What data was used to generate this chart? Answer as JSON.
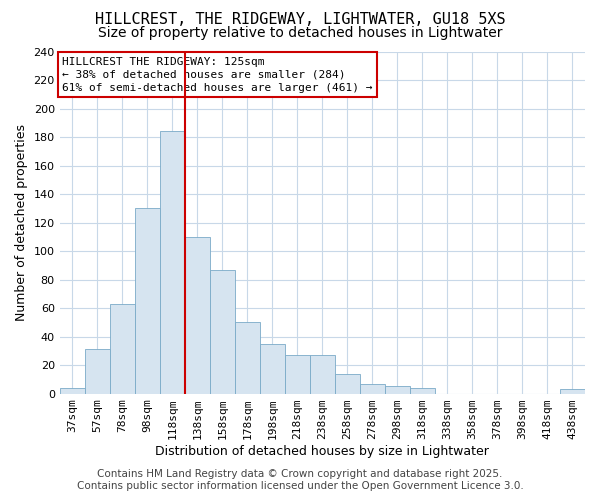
{
  "title": "HILLCREST, THE RIDGEWAY, LIGHTWATER, GU18 5XS",
  "subtitle": "Size of property relative to detached houses in Lightwater",
  "xlabel": "Distribution of detached houses by size in Lightwater",
  "ylabel": "Number of detached properties",
  "bar_labels": [
    "37sqm",
    "57sqm",
    "78sqm",
    "98sqm",
    "118sqm",
    "138sqm",
    "158sqm",
    "178sqm",
    "198sqm",
    "218sqm",
    "238sqm",
    "258sqm",
    "278sqm",
    "298sqm",
    "318sqm",
    "338sqm",
    "358sqm",
    "378sqm",
    "398sqm",
    "418sqm",
    "438sqm"
  ],
  "bar_values": [
    4,
    31,
    63,
    130,
    184,
    110,
    87,
    50,
    35,
    27,
    27,
    14,
    7,
    5,
    4,
    0,
    0,
    0,
    0,
    0,
    3
  ],
  "bar_color": "#d6e4f0",
  "bar_edge_color": "#7aaac8",
  "vline_color": "#cc0000",
  "vline_position": 4,
  "annotation_title": "HILLCREST THE RIDGEWAY: 125sqm",
  "annotation_line1": "← 38% of detached houses are smaller (284)",
  "annotation_line2": "61% of semi-detached houses are larger (461) →",
  "annotation_box_color": "#ffffff",
  "annotation_box_edge": "#cc0000",
  "ylim": [
    0,
    240
  ],
  "yticks": [
    0,
    20,
    40,
    60,
    80,
    100,
    120,
    140,
    160,
    180,
    200,
    220,
    240
  ],
  "footer_line1": "Contains HM Land Registry data © Crown copyright and database right 2025.",
  "footer_line2": "Contains public sector information licensed under the Open Government Licence 3.0.",
  "bg_color": "#ffffff",
  "plot_bg_color": "#ffffff",
  "grid_color": "#c8d8e8",
  "title_fontsize": 11,
  "subtitle_fontsize": 10,
  "axis_label_fontsize": 9,
  "tick_fontsize": 8,
  "annotation_fontsize": 8,
  "footer_fontsize": 7.5
}
